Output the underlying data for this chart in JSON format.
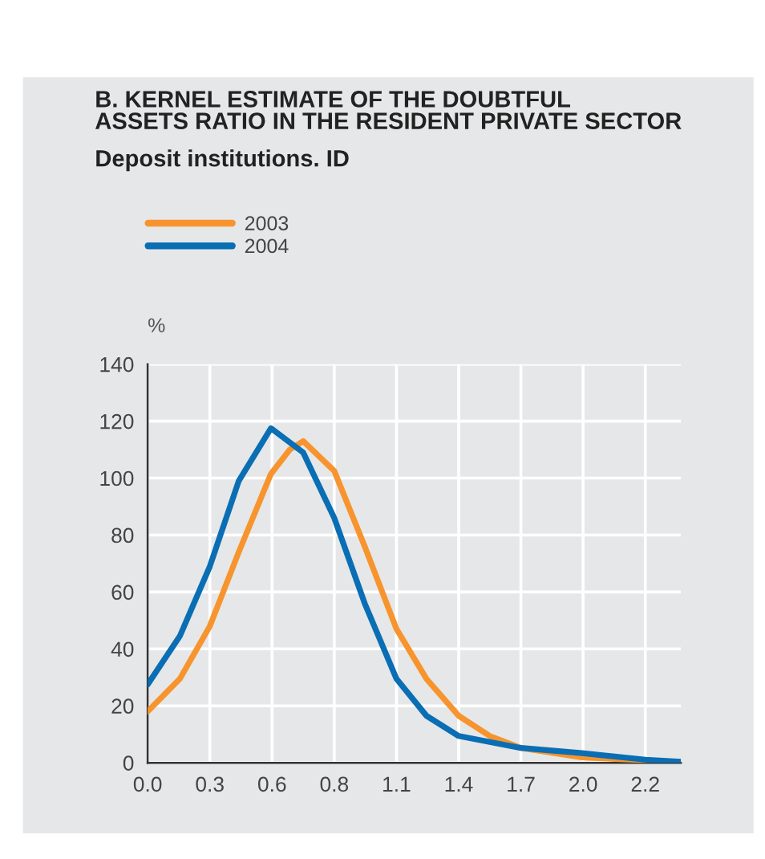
{
  "chart_data": {
    "type": "line",
    "title": "B. KERNEL ESTIMATE OF THE DOUBTFUL\nASSETS RATIO IN THE RESIDENT PRIVATE SECTOR",
    "subtitle": "Deposit institutions. ID",
    "ylabel": "%",
    "series": [
      {
        "name": "2003",
        "color": "#f7942e",
        "x": [
          0,
          0.145,
          0.28,
          0.41,
          0.555,
          0.64,
          0.7,
          0.84,
          0.977,
          1.12,
          1.255,
          1.4,
          1.54,
          1.68,
          1.955,
          2.24
        ],
        "values": [
          18,
          29.5,
          48,
          74,
          101.5,
          110,
          113,
          102.5,
          76,
          47,
          29.5,
          16.5,
          9.4,
          5.2,
          1.9,
          0.9
        ]
      },
      {
        "name": "2004",
        "color": "#0a6eb4",
        "x": [
          0,
          0.145,
          0.28,
          0.41,
          0.555,
          0.7,
          0.84,
          0.977,
          1.12,
          1.255,
          1.4,
          1.68,
          1.955,
          2.24,
          2.4
        ],
        "values": [
          27.5,
          44.5,
          69,
          99,
          117.5,
          109,
          86,
          56,
          29.5,
          16.5,
          9.4,
          5.2,
          3.4,
          1.1,
          0.4
        ]
      }
    ],
    "xlim": [
      0,
      2.4
    ],
    "xticks": [
      {
        "value": 0,
        "label": "0.0"
      },
      {
        "value": 0.28,
        "label": "0.3"
      },
      {
        "value": 0.56,
        "label": "0.6"
      },
      {
        "value": 0.84,
        "label": "0.8"
      },
      {
        "value": 1.12,
        "label": "1.1"
      },
      {
        "value": 1.4,
        "label": "1.4"
      },
      {
        "value": 1.68,
        "label": "1.7"
      },
      {
        "value": 1.96,
        "label": "2.0"
      },
      {
        "value": 2.24,
        "label": "2.2"
      }
    ],
    "ylim": [
      0,
      140
    ],
    "yticks": [
      0,
      20,
      40,
      60,
      80,
      100,
      120,
      140
    ],
    "grid": true,
    "legend": "top left",
    "marker": "none",
    "line_style": "solid"
  }
}
